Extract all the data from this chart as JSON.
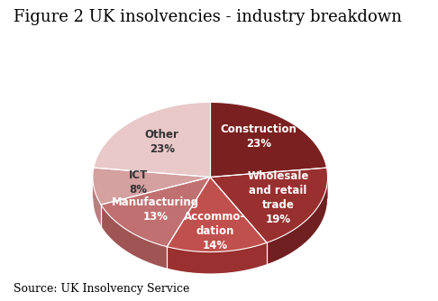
{
  "title": "Figure 2 UK insolvencies - industry breakdown",
  "source": "Source: UK Insolvency Service",
  "labels": [
    "Construction",
    "Wholesale\nand retail\ntrade",
    "Accommo-\ndation",
    "Manufacturing",
    "ICT",
    "Other"
  ],
  "values": [
    23,
    19,
    14,
    13,
    8,
    23
  ],
  "colors": [
    "#7B2020",
    "#993030",
    "#C0504D",
    "#C07070",
    "#D4A0A0",
    "#E8C8C8"
  ],
  "side_colors": [
    "#5A1515",
    "#702020",
    "#9A3030",
    "#A05555",
    "#B88080",
    "#CCA0A0"
  ],
  "pct_labels": [
    "23%",
    "19%",
    "14%",
    "13%",
    "8%",
    "23%"
  ],
  "title_fontsize": 13,
  "source_fontsize": 9,
  "label_fontsize": 8.5,
  "background_color": "#FFFFFF"
}
